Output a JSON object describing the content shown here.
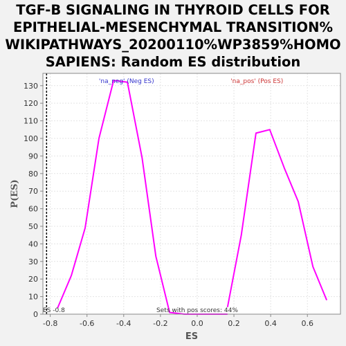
{
  "chart_data": {
    "type": "line",
    "title": "TGF-B SIGNALING IN THYROID CELLS FOR EPITHELIAL-MESENCHYMAL TRANSITION%\nWIKIPATHWAYS_20200110%WP3859%HOMO\nSAPIENS: Random ES distribution",
    "xlabel": "ES",
    "ylabel": "P(ES)",
    "xlim": [
      -0.84,
      0.78
    ],
    "ylim": [
      0,
      137
    ],
    "xticks": [
      "-0.8",
      "-0.6",
      "-0.4",
      "-0.2",
      "0.0",
      "0.2",
      "0.4",
      "0.6"
    ],
    "xtick_values": [
      -0.8,
      -0.6,
      -0.4,
      -0.2,
      0.0,
      0.2,
      0.4,
      0.6
    ],
    "yticks": [
      "0",
      "10",
      "20",
      "30",
      "40",
      "50",
      "60",
      "70",
      "80",
      "90",
      "100",
      "110",
      "120",
      "130"
    ],
    "ytick_values": [
      0,
      10,
      20,
      30,
      40,
      50,
      60,
      70,
      80,
      90,
      100,
      110,
      120,
      130
    ],
    "grid": true,
    "series": [
      {
        "name": "na_neg",
        "color": "#ff00ff",
        "x": [
          -0.76,
          -0.685,
          -0.61,
          -0.535,
          -0.455,
          -0.38,
          -0.3,
          -0.225,
          -0.15,
          -0.07,
          0.01,
          0.09,
          0.165
        ],
        "y": [
          3.5,
          22,
          49,
          100,
          133,
          132,
          89,
          33,
          1,
          0,
          0,
          0,
          0
        ]
      },
      {
        "name": "na_pos",
        "color": "#ff00ff",
        "x": [
          0.165,
          0.24,
          0.32,
          0.395,
          0.475,
          0.55,
          0.63,
          0.705
        ],
        "y": [
          4,
          45,
          103,
          105,
          83,
          64,
          27,
          8
        ]
      }
    ],
    "annotations": {
      "neg_label": "'na_neg' (Neg ES)",
      "neg_label_color": "#3333cc",
      "pos_label": "'na_pos' (Pos ES)",
      "pos_label_color": "#cc3333",
      "es_marker_label": "ES -0.8",
      "es_marker_value": -0.82,
      "sets_label": "Sets with pos scores: 44%"
    }
  }
}
